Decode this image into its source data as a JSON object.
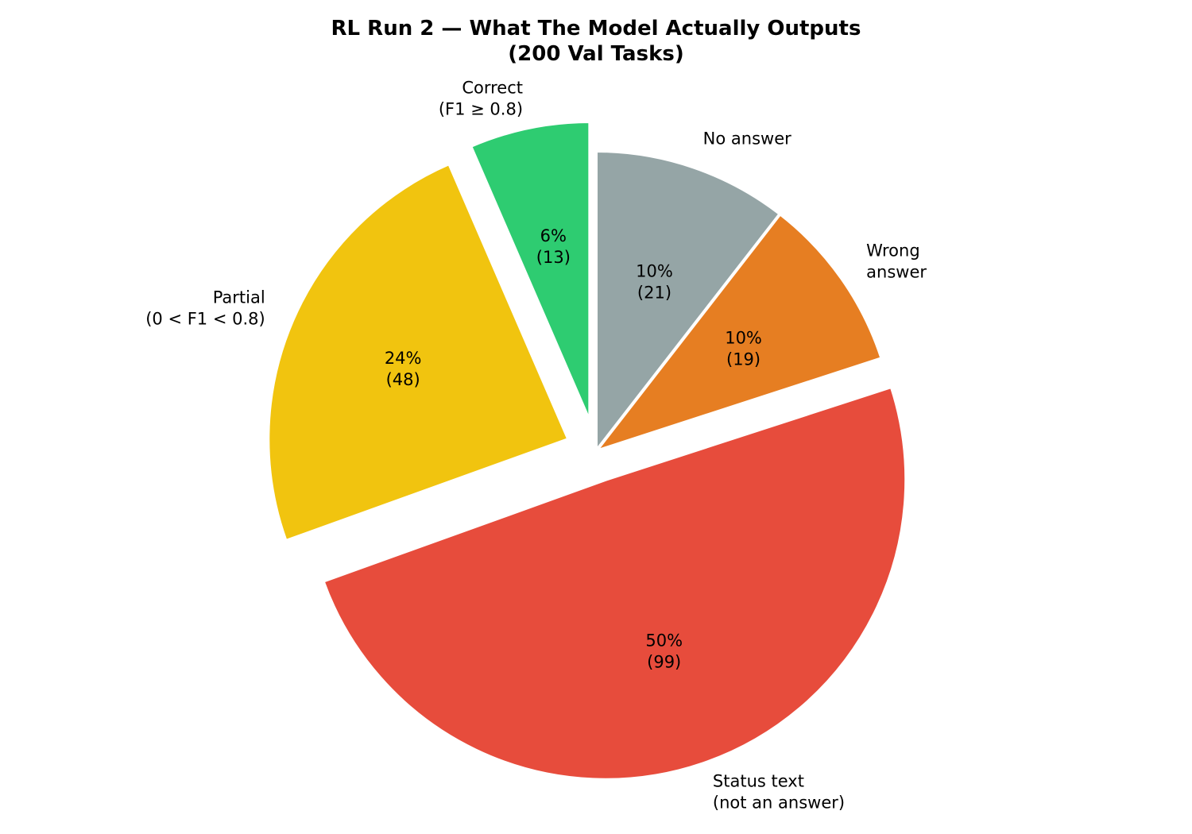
{
  "chart_data": {
    "type": "pie",
    "title_line1": "RL Run 2 — What The Model Actually Outputs",
    "title_line2": "(200 Val Tasks)",
    "total": 200,
    "start_angle_deg": 90,
    "direction": "clockwise",
    "slices": [
      {
        "label": "No answer",
        "value": 21,
        "pct_text": "10%",
        "count_text": "(21)",
        "color": "#95a5a6",
        "exploded": false
      },
      {
        "label": "Wrong answer",
        "value": 19,
        "pct_text": "10%",
        "count_text": "(19)",
        "color": "#e67e22",
        "exploded": false
      },
      {
        "label": "Status text (not an answer)",
        "value": 99,
        "pct_text": "50%",
        "count_text": "(99)",
        "color": "#e74c3c",
        "exploded": true
      },
      {
        "label": "Partial (0 < F1 < 0.8)",
        "value": 48,
        "pct_text": "24%",
        "count_text": "(48)",
        "color": "#f1c40f",
        "exploded": true
      },
      {
        "label": "Correct (F1 ≥ 0.8)",
        "value": 13,
        "pct_text": "6%",
        "count_text": "(13)",
        "color": "#2ecc71",
        "exploded": true
      }
    ],
    "outer_labels": [
      [
        "No answer"
      ],
      [
        "Wrong",
        "answer"
      ],
      [
        "Status text",
        "(not an answer)"
      ],
      [
        "Partial",
        "(0 < F1 < 0.8)"
      ],
      [
        "Correct",
        "(F1 ≥ 0.8)"
      ]
    ]
  }
}
